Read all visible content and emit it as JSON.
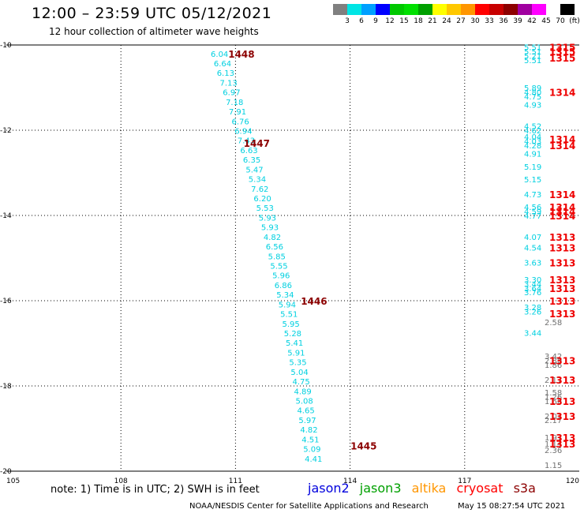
{
  "header": {
    "title": "12:00 – 23:59 UTC 05/12/2021",
    "subtitle": "12 hour collection of altimeter wave heights"
  },
  "color_scale": {
    "colors": [
      "#808080",
      "#00e5e5",
      "#00a0ff",
      "#0000ff",
      "#00c800",
      "#00e000",
      "#00a000",
      "#ffff00",
      "#ffc800",
      "#ff9600",
      "#ff0000",
      "#c80000",
      "#8c0000",
      "#a000a0",
      "#ff00ff",
      "#ffffff",
      "#000000"
    ],
    "labels": [
      "3",
      "6",
      "9",
      "12",
      "15",
      "18",
      "21",
      "24",
      "27",
      "30",
      "33",
      "36",
      "39",
      "42",
      "45",
      "70",
      "(ft)"
    ]
  },
  "axes": {
    "x_ticks": [
      "105",
      "108",
      "111",
      "114",
      "117",
      "120"
    ],
    "y_ticks": [
      "-10",
      "-12",
      "-14",
      "-16",
      "-18",
      "-20"
    ],
    "lon_range": [
      105,
      120
    ],
    "lat_range": [
      -20,
      -10
    ]
  },
  "map": {
    "main_track": {
      "values": [
        "6.04",
        "6.64",
        "6.13",
        "7.13",
        "6.97",
        "7.18",
        "7.91",
        "6.76",
        "6.94",
        "7.43",
        "6.63",
        "6.35",
        "5.47",
        "5.34",
        "7.62",
        "6.20",
        "5.53",
        "5.93",
        "5.93",
        "4.82",
        "6.56",
        "5.85",
        "5.55",
        "5.96",
        "6.86",
        "5.34",
        "5.94",
        "5.51",
        "5.95",
        "5.28",
        "5.41",
        "5.91",
        "5.35",
        "5.04",
        "4.75",
        "4.89",
        "5.08",
        "4.65",
        "5.97",
        "4.82",
        "4.51",
        "5.09",
        "4.41"
      ]
    },
    "pass_labels": [
      {
        "text": "1448",
        "lon": 111.1,
        "lat": -10.2
      },
      {
        "text": "1447",
        "lon": 111.5,
        "lat": -12.3
      },
      {
        "text": "1446",
        "lon": 113.0,
        "lat": -16.0
      },
      {
        "text": "1445",
        "lon": 114.3,
        "lat": -19.4
      }
    ],
    "east_cyan": [
      {
        "text": "5.51",
        "lat": -10.05
      },
      {
        "text": "5.51",
        "lat": -10.15
      },
      {
        "text": "5.21",
        "lat": -10.25
      },
      {
        "text": "5.51",
        "lat": -10.35
      },
      {
        "text": "5.89",
        "lat": -11.0
      },
      {
        "text": "4.80",
        "lat": -11.1
      },
      {
        "text": "4.75",
        "lat": -11.2
      },
      {
        "text": "4.93",
        "lat": -11.4
      },
      {
        "text": "4.52",
        "lat": -11.9
      },
      {
        "text": "4.62",
        "lat": -12.0
      },
      {
        "text": "4.04",
        "lat": -12.15
      },
      {
        "text": "4.03",
        "lat": -12.25
      },
      {
        "text": "4.28",
        "lat": -12.35
      },
      {
        "text": "4.91",
        "lat": -12.55
      },
      {
        "text": "5.19",
        "lat": -12.85
      },
      {
        "text": "5.15",
        "lat": -13.15
      },
      {
        "text": "4.73",
        "lat": -13.5
      },
      {
        "text": "4.56",
        "lat": -13.8
      },
      {
        "text": "4.59",
        "lat": -13.9
      },
      {
        "text": "4.77",
        "lat": -14.0
      },
      {
        "text": "4.07",
        "lat": -14.5
      },
      {
        "text": "4.54",
        "lat": -14.75
      },
      {
        "text": "3.63",
        "lat": -15.1
      },
      {
        "text": "3.30",
        "lat": -15.5
      },
      {
        "text": "3.44",
        "lat": -15.6
      },
      {
        "text": "3.64",
        "lat": -15.7
      },
      {
        "text": "3.76",
        "lat": -15.8
      },
      {
        "text": "3.28",
        "lat": -16.15
      },
      {
        "text": "3.26",
        "lat": -16.25
      },
      {
        "text": "3.44",
        "lat": -16.75
      }
    ],
    "east_gray": [
      {
        "text": "2.58",
        "lat": -16.5
      },
      {
        "text": "3.42",
        "lat": -17.3
      },
      {
        "text": "2.80",
        "lat": -17.4
      },
      {
        "text": "1.86",
        "lat": -17.5
      },
      {
        "text": "2.17",
        "lat": -17.85
      },
      {
        "text": "1.58",
        "lat": -18.15
      },
      {
        "text": "1.26",
        "lat": -18.25
      },
      {
        "text": "1.66",
        "lat": -18.35
      },
      {
        "text": "2.01",
        "lat": -18.7
      },
      {
        "text": "2.17",
        "lat": -18.8
      },
      {
        "text": "1.97",
        "lat": -19.2
      },
      {
        "text": "1.14",
        "lat": -19.35
      },
      {
        "text": "2.36",
        "lat": -19.5
      },
      {
        "text": "1.15",
        "lat": -19.85
      }
    ],
    "east_red": [
      {
        "text": "1315",
        "lat": -10.05
      },
      {
        "text": "1315",
        "lat": -10.15
      },
      {
        "text": "1315",
        "lat": -10.3
      },
      {
        "text": "1314",
        "lat": -11.1
      },
      {
        "text": "1314",
        "lat": -12.2
      },
      {
        "text": "1314",
        "lat": -12.35
      },
      {
        "text": "1314",
        "lat": -13.5
      },
      {
        "text": "1314",
        "lat": -13.8
      },
      {
        "text": "1314",
        "lat": -13.9
      },
      {
        "text": "1314",
        "lat": -14.0
      },
      {
        "text": "1313",
        "lat": -14.5
      },
      {
        "text": "1313",
        "lat": -14.75
      },
      {
        "text": "1313",
        "lat": -15.1
      },
      {
        "text": "1313",
        "lat": -15.5
      },
      {
        "text": "1313",
        "lat": -15.7
      },
      {
        "text": "1313",
        "lat": -16.0
      },
      {
        "text": "1313",
        "lat": -16.3
      },
      {
        "text": "1313",
        "lat": -17.4
      },
      {
        "text": "1313",
        "lat": -17.85
      },
      {
        "text": "1313",
        "lat": -18.35
      },
      {
        "text": "1313",
        "lat": -18.7
      },
      {
        "text": "1313",
        "lat": -19.2
      },
      {
        "text": "1313",
        "lat": -19.35
      }
    ]
  },
  "note": "note:  1) Time is in UTC;  2) SWH is in feet",
  "legend": [
    {
      "name": "jason2",
      "color": "#0000dd"
    },
    {
      "name": "jason3",
      "color": "#00a000"
    },
    {
      "name": "altika",
      "color": "#ff9600"
    },
    {
      "name": "cryosat",
      "color": "#ff0000"
    },
    {
      "name": "s3a",
      "color": "#8c0000"
    }
  ],
  "footer": {
    "credit": "NOAA/NESDIS Center for Satellite Applications and Research",
    "timestamp": "May 15 08:27:54 UTC 2021"
  }
}
